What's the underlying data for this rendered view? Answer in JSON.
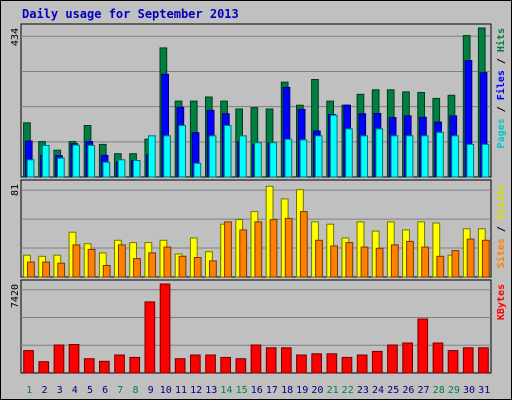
{
  "chart_data": {
    "type": "bar",
    "title": "Daily usage for September 2013",
    "days": [
      "1",
      "2",
      "3",
      "4",
      "5",
      "6",
      "7",
      "8",
      "9",
      "10",
      "11",
      "12",
      "13",
      "14",
      "15",
      "16",
      "17",
      "18",
      "19",
      "20",
      "21",
      "22",
      "23",
      "24",
      "25",
      "26",
      "27",
      "28",
      "29",
      "30",
      "31"
    ],
    "weekend_days": [
      "1",
      "7",
      "8",
      "14",
      "15",
      "21",
      "22",
      "28",
      "29"
    ],
    "panels": [
      {
        "id": "top",
        "ymax_label": "434",
        "ymax": 434,
        "legend": [
          "Pages",
          "Files",
          "Hits"
        ],
        "series": [
          {
            "name": "Hits",
            "color": "#008040",
            "values": [
              158,
              103,
              78,
              103,
              150,
              95,
              68,
              68,
              110,
              376,
              221,
              221,
              233,
              221,
              198,
              202,
              198,
              276,
              209,
              284,
              221,
              209,
              241,
              254,
              254,
              248,
              246,
              229,
              238,
              412,
              434
            ]
          },
          {
            "name": "Files",
            "color": "#0000ff",
            "values": [
              105,
              63,
              62,
              97,
              103,
              63,
              43,
              48,
              65,
              299,
              203,
              129,
              194,
              184,
              103,
              95,
              99,
              261,
              197,
              134,
              182,
              209,
              184,
              185,
              173,
              178,
              174,
              160,
              178,
              339,
              304
            ]
          },
          {
            "name": "Pages",
            "color": "#00ffff",
            "values": [
              50,
              92,
              55,
              93,
              92,
              43,
              50,
              48,
              120,
              120,
              150,
              40,
              120,
              150,
              120,
              100,
              100,
              110,
              108,
              120,
              180,
              140,
              120,
              140,
              120,
              120,
              120,
              130,
              120,
              95,
              95
            ]
          }
        ]
      },
      {
        "id": "middle",
        "ymax_label": "81",
        "ymax": 81,
        "legend": [
          "Sites",
          "Visits"
        ],
        "series": [
          {
            "name": "Visits",
            "color": "#ffff00",
            "values": [
              19,
              18,
              19,
              39,
              29,
              21,
              32,
              30,
              30,
              32,
              20,
              34,
              22,
              46,
              50,
              57,
              79,
              68,
              76,
              48,
              46,
              34,
              48,
              40,
              48,
              41,
              48,
              47,
              19,
              42,
              42
            ]
          },
          {
            "name": "Sites",
            "color": "#ff8000",
            "values": [
              13,
              13,
              12,
              28,
              24,
              10,
              28,
              16,
              21,
              26,
              18,
              17,
              14,
              48,
              41,
              48,
              50,
              51,
              57,
              32,
              27,
              30,
              26,
              25,
              28,
              31,
              26,
              18,
              23,
              33,
              32
            ]
          }
        ]
      },
      {
        "id": "bottom",
        "ymax_label": "7420",
        "ymax": 7420,
        "legend": [
          "KBytes"
        ],
        "series": [
          {
            "name": "KBytes",
            "color": "#ff0000",
            "values": [
              1867,
              944,
              2331,
              2372,
              1191,
              975,
              1500,
              1300,
              5929,
              7420,
              1191,
              1500,
              1500,
              1300,
              1191,
              2331,
              2100,
              2100,
              1500,
              1600,
              1600,
              1300,
              1500,
              1800,
              2331,
              2500,
              4498,
              2500,
              1870,
              2100,
              2100
            ]
          }
        ]
      }
    ],
    "legend_colors": {
      "Pages": "#00c8c8",
      "Files": "#0000ff",
      "Hits": "#008040",
      "Sites": "#ff8000",
      "Visits": "#dddd00",
      "KBytes": "#ff0000"
    },
    "title_color": "#0000c0",
    "axis_label_color": "#000000",
    "day_color": "#000080",
    "weekend_color": "#008040"
  }
}
